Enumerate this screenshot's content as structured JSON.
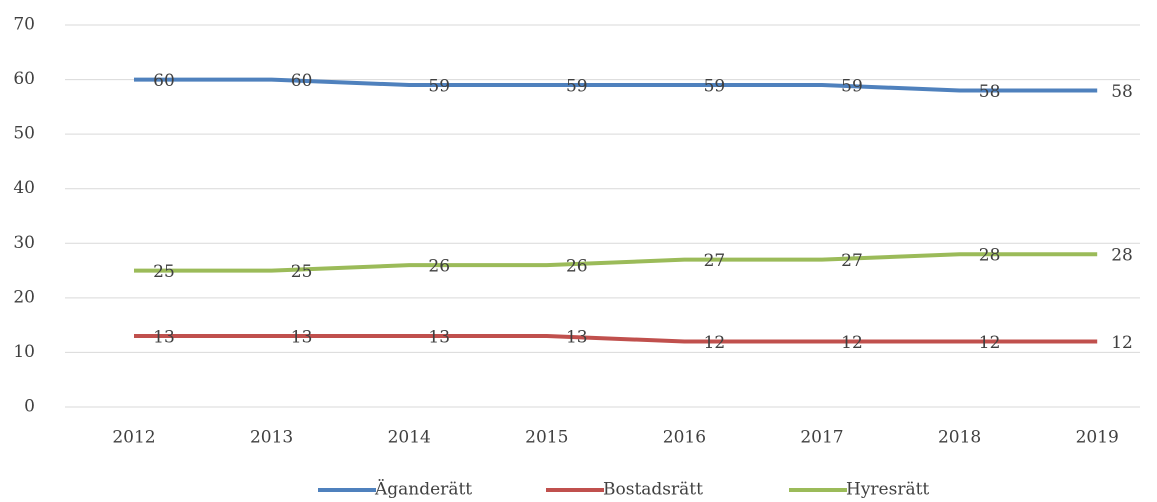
{
  "chart_data": {
    "type": "line",
    "categories": [
      "2012",
      "2013",
      "2014",
      "2015",
      "2016",
      "2017",
      "2018",
      "2019"
    ],
    "series": [
      {
        "name": "Äganderätt",
        "color": "#4f81bd",
        "values": [
          60,
          60,
          59,
          59,
          59,
          59,
          58,
          58
        ]
      },
      {
        "name": "Bostadsrätt",
        "color": "#c0504d",
        "values": [
          13,
          13,
          13,
          13,
          12,
          12,
          12,
          12
        ]
      },
      {
        "name": "Hyresrätt",
        "color": "#9bbb59",
        "values": [
          25,
          25,
          26,
          26,
          27,
          27,
          28,
          28
        ]
      }
    ],
    "ylim": [
      0,
      70
    ],
    "yticks": [
      0,
      10,
      20,
      30,
      40,
      50,
      60,
      70
    ],
    "grid": true,
    "legend": "bottom"
  }
}
